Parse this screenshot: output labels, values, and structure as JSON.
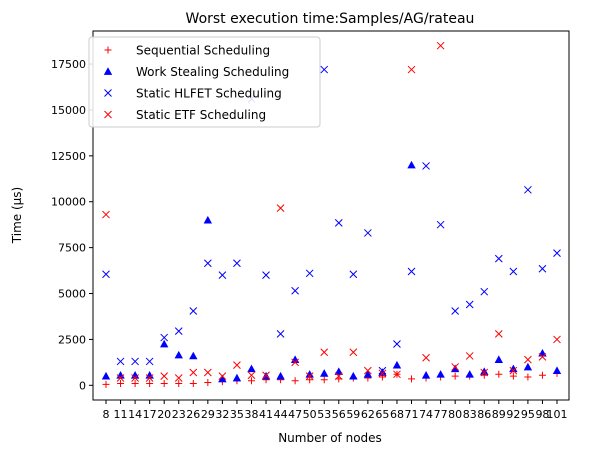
{
  "chart_data": {
    "type": "scatter",
    "title": "Worst execution time:Samples/AG/rateau",
    "xlabel": "Number of nodes",
    "ylabel": "Time (µs)",
    "ylim": [
      -800,
      19300
    ],
    "yticks": [
      0,
      2500,
      5000,
      7500,
      10000,
      12500,
      15000,
      17500
    ],
    "grid": false,
    "legend_position": "top-left",
    "categories": [
      "8",
      "11",
      "14",
      "17",
      "20",
      "23",
      "26",
      "29",
      "32",
      "35",
      "38",
      "41",
      "44",
      "47",
      "50",
      "53",
      "56",
      "59",
      "62",
      "65",
      "68",
      "71",
      "74",
      "77",
      "80",
      "83",
      "86",
      "89",
      "92",
      "95",
      "98",
      "101"
    ],
    "series": [
      {
        "name": "Sequential Scheduling",
        "marker": "plus",
        "color": "#ff0000",
        "values": [
          50,
          100,
          100,
          100,
          100,
          100,
          100,
          150,
          200,
          250,
          250,
          300,
          300,
          250,
          300,
          300,
          350,
          400,
          400,
          450,
          600,
          350,
          400,
          450,
          500,
          500,
          550,
          600,
          500,
          450,
          550,
          650
        ]
      },
      {
        "name": "Work Stealing Scheduling",
        "marker": "triangle",
        "color": "#0000ff",
        "values": [
          500,
          550,
          550,
          550,
          2250,
          1650,
          1600,
          9000,
          350,
          400,
          900,
          500,
          500,
          1400,
          600,
          650,
          750,
          500,
          600,
          700,
          1100,
          12000,
          550,
          600,
          900,
          600,
          750,
          1400,
          900,
          1000,
          1750,
          800
        ]
      },
      {
        "name": "Static HLFET Scheduling",
        "marker": "x",
        "color": "#0000ff",
        "values": [
          6050,
          1300,
          1300,
          1300,
          2600,
          2950,
          4050,
          6650,
          6000,
          6650,
          15600,
          6000,
          2800,
          5150,
          6100,
          17200,
          8850,
          6050,
          8300,
          800,
          2250,
          6200,
          11950,
          8750,
          4050,
          4400,
          5100,
          6900,
          6200,
          10650,
          6350,
          7200
        ]
      },
      {
        "name": "Static ETF Scheduling",
        "marker": "x",
        "color": "#ff0000",
        "values": [
          9300,
          400,
          400,
          400,
          500,
          400,
          700,
          700,
          500,
          1100,
          550,
          550,
          9650,
          1250,
          500,
          1800,
          500,
          1800,
          800,
          650,
          600,
          17200,
          1500,
          18500,
          1000,
          1600,
          700,
          2800,
          800,
          1400,
          1550,
          2500
        ]
      }
    ]
  }
}
